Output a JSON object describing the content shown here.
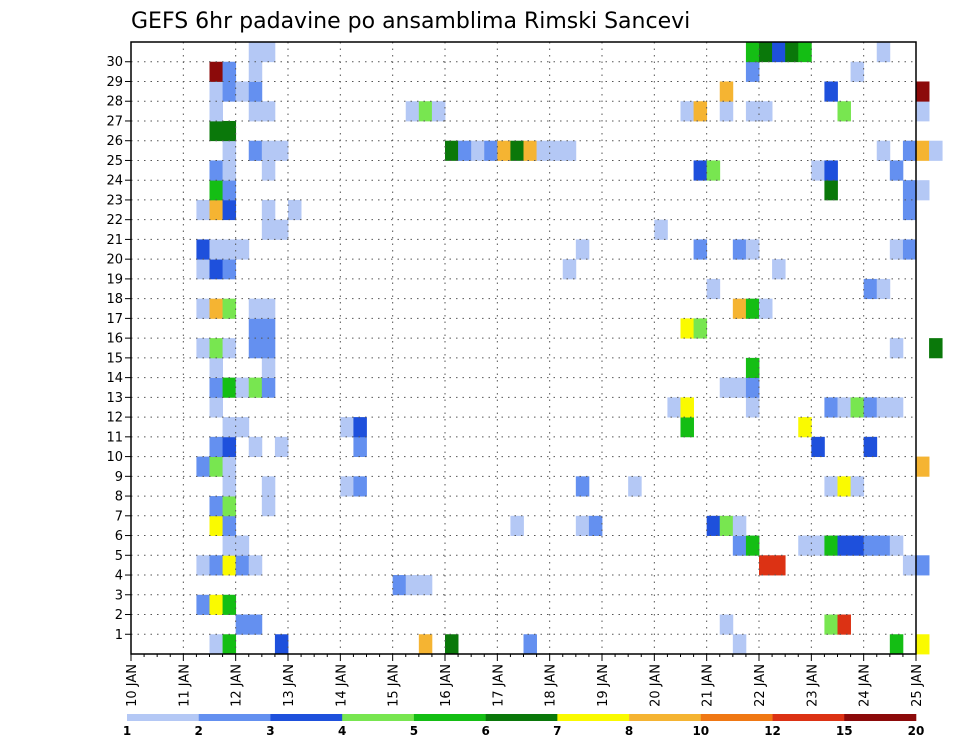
{
  "chart_data": {
    "type": "heatmap",
    "title": "GEFS 6hr padavine po ansamblima Rimski Sancevi",
    "y_ticks": [
      "1",
      "2",
      "3",
      "4",
      "5",
      "6",
      "7",
      "8",
      "9",
      "10",
      "11",
      "12",
      "13",
      "14",
      "15",
      "16",
      "17",
      "18",
      "19",
      "20",
      "21",
      "22",
      "23",
      "24",
      "25",
      "26",
      "27",
      "28",
      "29",
      "30"
    ],
    "y_range": [
      0,
      30
    ],
    "x_ticks": [
      "10 JAN",
      "11 JAN",
      "12 JAN",
      "13 JAN",
      "14 JAN",
      "15 JAN",
      "16 JAN",
      "17 JAN",
      "18 JAN",
      "19 JAN",
      "20 JAN",
      "21 JAN",
      "22 JAN",
      "23 JAN",
      "24 JAN",
      "25 JAN"
    ],
    "x_range": [
      0,
      15
    ],
    "grid": true,
    "colorbar": {
      "labels": [
        "1",
        "2",
        "3",
        "4",
        "5",
        "6",
        "7",
        "8",
        "10",
        "12",
        "15",
        "20"
      ],
      "colors": [
        "#b4c8f5",
        "#6490f0",
        "#1e50dc",
        "#78e650",
        "#14be14",
        "#0a780a",
        "#fafa00",
        "#f5b432",
        "#f07814",
        "#dc3214",
        "#8c0a0a"
      ]
    },
    "cells": [
      {
        "m": 0,
        "t": 6,
        "c": 1
      },
      {
        "m": 0,
        "t": 7,
        "c": 5
      },
      {
        "m": 0,
        "t": 11,
        "c": 3
      },
      {
        "m": 0,
        "t": 22,
        "c": 8
      },
      {
        "m": 0,
        "t": 24,
        "c": 6
      },
      {
        "m": 0,
        "t": 30,
        "c": 2
      },
      {
        "m": 0,
        "t": 46,
        "c": 1
      },
      {
        "m": 0,
        "t": 60,
        "c": 7
      },
      {
        "m": 0,
        "t": 58,
        "c": 5
      },
      {
        "m": 1,
        "t": 8,
        "c": 2
      },
      {
        "m": 1,
        "t": 9,
        "c": 2
      },
      {
        "m": 1,
        "t": 45,
        "c": 1
      },
      {
        "m": 1,
        "t": 53,
        "c": 4
      },
      {
        "m": 1,
        "t": 54,
        "c": 10
      },
      {
        "m": 2,
        "t": 5,
        "c": 2
      },
      {
        "m": 2,
        "t": 6,
        "c": 7
      },
      {
        "m": 2,
        "t": 7,
        "c": 5
      },
      {
        "m": 3,
        "t": 20,
        "c": 2
      },
      {
        "m": 3,
        "t": 21,
        "c": 1
      },
      {
        "m": 3,
        "t": 22,
        "c": 1
      },
      {
        "m": 4,
        "t": 5,
        "c": 1
      },
      {
        "m": 4,
        "t": 6,
        "c": 2
      },
      {
        "m": 4,
        "t": 7,
        "c": 7
      },
      {
        "m": 4,
        "t": 8,
        "c": 2
      },
      {
        "m": 4,
        "t": 9,
        "c": 1
      },
      {
        "m": 4,
        "t": 48,
        "c": 10
      },
      {
        "m": 4,
        "t": 49,
        "c": 10
      },
      {
        "m": 4,
        "t": 59,
        "c": 1
      },
      {
        "m": 4,
        "t": 60,
        "c": 2
      },
      {
        "m": 5,
        "t": 7,
        "c": 1
      },
      {
        "m": 5,
        "t": 8,
        "c": 1
      },
      {
        "m": 5,
        "t": 46,
        "c": 2
      },
      {
        "m": 5,
        "t": 47,
        "c": 5
      },
      {
        "m": 5,
        "t": 51,
        "c": 1
      },
      {
        "m": 5,
        "t": 52,
        "c": 1
      },
      {
        "m": 5,
        "t": 53,
        "c": 5
      },
      {
        "m": 5,
        "t": 54,
        "c": 3
      },
      {
        "m": 5,
        "t": 55,
        "c": 3
      },
      {
        "m": 5,
        "t": 56,
        "c": 2
      },
      {
        "m": 5,
        "t": 57,
        "c": 2
      },
      {
        "m": 5,
        "t": 58,
        "c": 1
      },
      {
        "m": 6,
        "t": 6,
        "c": 7
      },
      {
        "m": 6,
        "t": 7,
        "c": 2
      },
      {
        "m": 6,
        "t": 29,
        "c": 1
      },
      {
        "m": 6,
        "t": 34,
        "c": 1
      },
      {
        "m": 6,
        "t": 35,
        "c": 2
      },
      {
        "m": 6,
        "t": 44,
        "c": 3
      },
      {
        "m": 6,
        "t": 45,
        "c": 4
      },
      {
        "m": 6,
        "t": 46,
        "c": 1
      },
      {
        "m": 7,
        "t": 6,
        "c": 2
      },
      {
        "m": 7,
        "t": 7,
        "c": 4
      },
      {
        "m": 7,
        "t": 10,
        "c": 1
      },
      {
        "m": 8,
        "t": 7,
        "c": 1
      },
      {
        "m": 8,
        "t": 10,
        "c": 1
      },
      {
        "m": 8,
        "t": 16,
        "c": 1
      },
      {
        "m": 8,
        "t": 17,
        "c": 2
      },
      {
        "m": 8,
        "t": 34,
        "c": 2
      },
      {
        "m": 8,
        "t": 38,
        "c": 1
      },
      {
        "m": 8,
        "t": 53,
        "c": 1
      },
      {
        "m": 8,
        "t": 54,
        "c": 7
      },
      {
        "m": 8,
        "t": 55,
        "c": 1
      },
      {
        "m": 9,
        "t": 5,
        "c": 2
      },
      {
        "m": 9,
        "t": 6,
        "c": 4
      },
      {
        "m": 9,
        "t": 7,
        "c": 1
      },
      {
        "m": 9,
        "t": 60,
        "c": 8
      },
      {
        "m": 10,
        "t": 6,
        "c": 2
      },
      {
        "m": 10,
        "t": 7,
        "c": 3
      },
      {
        "m": 10,
        "t": 9,
        "c": 1
      },
      {
        "m": 10,
        "t": 11,
        "c": 1
      },
      {
        "m": 10,
        "t": 17,
        "c": 2
      },
      {
        "m": 10,
        "t": 52,
        "c": 3
      },
      {
        "m": 10,
        "t": 56,
        "c": 3
      },
      {
        "m": 11,
        "t": 7,
        "c": 1
      },
      {
        "m": 11,
        "t": 8,
        "c": 1
      },
      {
        "m": 11,
        "t": 16,
        "c": 1
      },
      {
        "m": 11,
        "t": 17,
        "c": 3
      },
      {
        "m": 11,
        "t": 42,
        "c": 5
      },
      {
        "m": 11,
        "t": 51,
        "c": 7
      },
      {
        "m": 12,
        "t": 6,
        "c": 1
      },
      {
        "m": 12,
        "t": 41,
        "c": 1
      },
      {
        "m": 12,
        "t": 42,
        "c": 7
      },
      {
        "m": 12,
        "t": 47,
        "c": 1
      },
      {
        "m": 12,
        "t": 53,
        "c": 2
      },
      {
        "m": 12,
        "t": 54,
        "c": 1
      },
      {
        "m": 12,
        "t": 55,
        "c": 4
      },
      {
        "m": 12,
        "t": 56,
        "c": 2
      },
      {
        "m": 12,
        "t": 57,
        "c": 1
      },
      {
        "m": 12,
        "t": 58,
        "c": 1
      },
      {
        "m": 13,
        "t": 6,
        "c": 2
      },
      {
        "m": 13,
        "t": 7,
        "c": 5
      },
      {
        "m": 13,
        "t": 8,
        "c": 1
      },
      {
        "m": 13,
        "t": 9,
        "c": 4
      },
      {
        "m": 13,
        "t": 10,
        "c": 2
      },
      {
        "m": 13,
        "t": 45,
        "c": 1
      },
      {
        "m": 13,
        "t": 46,
        "c": 1
      },
      {
        "m": 13,
        "t": 47,
        "c": 2
      },
      {
        "m": 14,
        "t": 6,
        "c": 1
      },
      {
        "m": 14,
        "t": 10,
        "c": 1
      },
      {
        "m": 14,
        "t": 47,
        "c": 5
      },
      {
        "m": 15,
        "t": 5,
        "c": 1
      },
      {
        "m": 15,
        "t": 6,
        "c": 4
      },
      {
        "m": 15,
        "t": 7,
        "c": 1
      },
      {
        "m": 15,
        "t": 9,
        "c": 2
      },
      {
        "m": 15,
        "t": 10,
        "c": 2
      },
      {
        "m": 15,
        "t": 58,
        "c": 1
      },
      {
        "m": 15,
        "t": 61,
        "c": 6
      },
      {
        "m": 16,
        "t": 9,
        "c": 2
      },
      {
        "m": 16,
        "t": 10,
        "c": 2
      },
      {
        "m": 16,
        "t": 42,
        "c": 7
      },
      {
        "m": 16,
        "t": 43,
        "c": 4
      },
      {
        "m": 17,
        "t": 5,
        "c": 1
      },
      {
        "m": 17,
        "t": 6,
        "c": 8
      },
      {
        "m": 17,
        "t": 7,
        "c": 4
      },
      {
        "m": 17,
        "t": 9,
        "c": 1
      },
      {
        "m": 17,
        "t": 10,
        "c": 1
      },
      {
        "m": 17,
        "t": 46,
        "c": 8
      },
      {
        "m": 17,
        "t": 47,
        "c": 5
      },
      {
        "m": 17,
        "t": 48,
        "c": 1
      },
      {
        "m": 18,
        "t": 44,
        "c": 1
      },
      {
        "m": 18,
        "t": 56,
        "c": 2
      },
      {
        "m": 18,
        "t": 57,
        "c": 1
      },
      {
        "m": 19,
        "t": 5,
        "c": 1
      },
      {
        "m": 19,
        "t": 6,
        "c": 3
      },
      {
        "m": 19,
        "t": 7,
        "c": 2
      },
      {
        "m": 19,
        "t": 33,
        "c": 1
      },
      {
        "m": 19,
        "t": 49,
        "c": 1
      },
      {
        "m": 20,
        "t": 5,
        "c": 3
      },
      {
        "m": 20,
        "t": 6,
        "c": 1
      },
      {
        "m": 20,
        "t": 7,
        "c": 1
      },
      {
        "m": 20,
        "t": 8,
        "c": 1
      },
      {
        "m": 20,
        "t": 34,
        "c": 1
      },
      {
        "m": 20,
        "t": 43,
        "c": 2
      },
      {
        "m": 20,
        "t": 46,
        "c": 2
      },
      {
        "m": 20,
        "t": 47,
        "c": 1
      },
      {
        "m": 20,
        "t": 58,
        "c": 1
      },
      {
        "m": 20,
        "t": 59,
        "c": 2
      },
      {
        "m": 21,
        "t": 10,
        "c": 1
      },
      {
        "m": 21,
        "t": 11,
        "c": 1
      },
      {
        "m": 21,
        "t": 40,
        "c": 1
      },
      {
        "m": 22,
        "t": 5,
        "c": 1
      },
      {
        "m": 22,
        "t": 6,
        "c": 8
      },
      {
        "m": 22,
        "t": 7,
        "c": 3
      },
      {
        "m": 22,
        "t": 10,
        "c": 1
      },
      {
        "m": 22,
        "t": 12,
        "c": 1
      },
      {
        "m": 22,
        "t": 59,
        "c": 2
      },
      {
        "m": 23,
        "t": 6,
        "c": 5
      },
      {
        "m": 23,
        "t": 7,
        "c": 2
      },
      {
        "m": 23,
        "t": 53,
        "c": 6
      },
      {
        "m": 23,
        "t": 59,
        "c": 2
      },
      {
        "m": 23,
        "t": 60,
        "c": 1
      },
      {
        "m": 24,
        "t": 6,
        "c": 2
      },
      {
        "m": 24,
        "t": 7,
        "c": 1
      },
      {
        "m": 24,
        "t": 10,
        "c": 1
      },
      {
        "m": 24,
        "t": 43,
        "c": 3
      },
      {
        "m": 24,
        "t": 44,
        "c": 4
      },
      {
        "m": 24,
        "t": 52,
        "c": 1
      },
      {
        "m": 24,
        "t": 53,
        "c": 3
      },
      {
        "m": 24,
        "t": 58,
        "c": 2
      },
      {
        "m": 25,
        "t": 7,
        "c": 1
      },
      {
        "m": 25,
        "t": 9,
        "c": 2
      },
      {
        "m": 25,
        "t": 10,
        "c": 1
      },
      {
        "m": 25,
        "t": 11,
        "c": 1
      },
      {
        "m": 25,
        "t": 24,
        "c": 6
      },
      {
        "m": 25,
        "t": 25,
        "c": 2
      },
      {
        "m": 25,
        "t": 26,
        "c": 1
      },
      {
        "m": 25,
        "t": 27,
        "c": 2
      },
      {
        "m": 25,
        "t": 28,
        "c": 8
      },
      {
        "m": 25,
        "t": 29,
        "c": 6
      },
      {
        "m": 25,
        "t": 30,
        "c": 8
      },
      {
        "m": 25,
        "t": 31,
        "c": 1
      },
      {
        "m": 25,
        "t": 32,
        "c": 1
      },
      {
        "m": 25,
        "t": 33,
        "c": 1
      },
      {
        "m": 25,
        "t": 57,
        "c": 1
      },
      {
        "m": 25,
        "t": 59,
        "c": 2
      },
      {
        "m": 25,
        "t": 60,
        "c": 8
      },
      {
        "m": 25,
        "t": 61,
        "c": 1
      },
      {
        "m": 26,
        "t": 6,
        "c": 6
      },
      {
        "m": 26,
        "t": 7,
        "c": 6
      },
      {
        "m": 27,
        "t": 6,
        "c": 1
      },
      {
        "m": 27,
        "t": 9,
        "c": 1
      },
      {
        "m": 27,
        "t": 10,
        "c": 1
      },
      {
        "m": 27,
        "t": 21,
        "c": 1
      },
      {
        "m": 27,
        "t": 22,
        "c": 4
      },
      {
        "m": 27,
        "t": 23,
        "c": 1
      },
      {
        "m": 27,
        "t": 42,
        "c": 1
      },
      {
        "m": 27,
        "t": 43,
        "c": 8
      },
      {
        "m": 27,
        "t": 45,
        "c": 1
      },
      {
        "m": 27,
        "t": 47,
        "c": 1
      },
      {
        "m": 27,
        "t": 48,
        "c": 1
      },
      {
        "m": 27,
        "t": 54,
        "c": 4
      },
      {
        "m": 27,
        "t": 60,
        "c": 1
      },
      {
        "m": 28,
        "t": 6,
        "c": 1
      },
      {
        "m": 28,
        "t": 7,
        "c": 2
      },
      {
        "m": 28,
        "t": 8,
        "c": 1
      },
      {
        "m": 28,
        "t": 9,
        "c": 2
      },
      {
        "m": 28,
        "t": 45,
        "c": 8
      },
      {
        "m": 28,
        "t": 53,
        "c": 3
      },
      {
        "m": 28,
        "t": 60,
        "c": 11
      },
      {
        "m": 29,
        "t": 6,
        "c": 11
      },
      {
        "m": 29,
        "t": 7,
        "c": 2
      },
      {
        "m": 29,
        "t": 9,
        "c": 1
      },
      {
        "m": 29,
        "t": 47,
        "c": 2
      },
      {
        "m": 29,
        "t": 55,
        "c": 1
      },
      {
        "m": 30,
        "t": 9,
        "c": 1
      },
      {
        "m": 30,
        "t": 10,
        "c": 1
      },
      {
        "m": 30,
        "t": 47,
        "c": 5
      },
      {
        "m": 30,
        "t": 48,
        "c": 6
      },
      {
        "m": 30,
        "t": 49,
        "c": 3
      },
      {
        "m": 30,
        "t": 50,
        "c": 6
      },
      {
        "m": 30,
        "t": 51,
        "c": 5
      },
      {
        "m": 30,
        "t": 57,
        "c": 1
      }
    ]
  }
}
